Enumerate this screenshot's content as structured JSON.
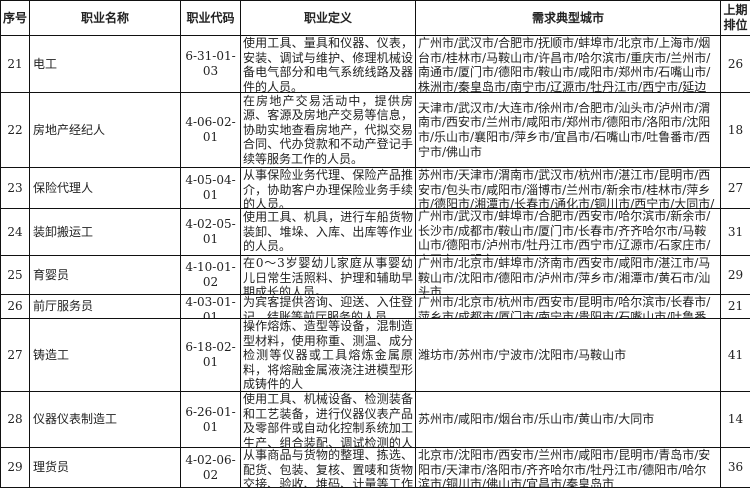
{
  "headers": [
    "序号",
    "职业名称",
    "职业代码",
    "职业定义",
    "需求典型城市",
    "上期排位"
  ],
  "rows": [
    {
      "no": "21",
      "name": "电工",
      "code": "6-31-01-03",
      "definition": "使用工具、量具和仪器、仪表，安装、调试与维护、修理机械设备电气部分和电气系统线路及器件的人员。",
      "cities": "广州市/武汉市/合肥市/抚顺市/蚌埠市/北京市/上海市/烟台市/桂林市/马鞍山市/许昌市/哈尔滨市/重庆市/兰州市/南通市/厦门市/德阳市/鞍山市/咸阳市/郑州市/石嘴山市/株洲市/秦皇岛市/南宁市/辽源市/牡丹江市/西宁市/延边朝鲜族自治州",
      "prev_rank": "26"
    },
    {
      "no": "22",
      "name": "房地产经纪人",
      "code": "4-06-02-01",
      "definition": "在房地产交易活动中，提供房源、客源及房地产交易等信息，协助实地查看房地产，代拟交易合同、代办贷款和不动产登记手续等服务工作的人员。",
      "cities": "天津市/武汉市/大连市/徐州市/合肥市/汕头市/泸州市/渭南市/西安市/兰州市/咸阳市/郑州市/德阳市/洛阳市/沈阳市/乐山市/襄阳市/萍乡市/宜昌市/石嘴山市/吐鲁番市/西宁市/佛山市",
      "prev_rank": "18"
    },
    {
      "no": "23",
      "name": "保险代理人",
      "code": "4-05-04-01",
      "definition": "从事保险业务代理、保险产品推介，协助客户办理保险业务手续的人员。",
      "cities": "苏州市/天津市/渭南市/武汉市/杭州市/湛江市/昆明市/西安市/包头市/咸阳市/淄博市/兰州市/新余市/桂林市/萍乡市/德阳市/湘潭市/长春市/通化市/铜川市/西宁市/大同市/辽源市/吉林市",
      "prev_rank": "27"
    },
    {
      "no": "24",
      "name": "装卸搬运工",
      "code": "4-02-05-01",
      "definition": "使用工具、机具，进行车船货物装卸、堆垛、入库、出库等作业的人员。",
      "cities": "广州市/武汉市/蚌埠市/合肥市/西安市/哈尔滨市/新余市/长沙市/成都市/鞍山市/厦门市/长春市/齐齐哈尔市/马鞍山市/德阳市/泸州市/牡丹江市/西宁市/辽源市/石家庄市/大同市/三明市",
      "prev_rank": "31"
    },
    {
      "no": "25",
      "name": "育婴员",
      "code": "4-10-01-02",
      "definition": "在0～3岁婴幼儿家庭从事婴幼儿日常生活照料、护理和辅助早期成长的人员。",
      "cities": "广州市/北京市/蚌埠市/济南市/西安市/咸阳市/湛江市/马鞍山市/沈阳市/德阳市/泸州市/萍乡市/湘潭市/黄石市/汕头市",
      "prev_rank": "29"
    },
    {
      "no": "26",
      "name": "前厅服务员",
      "code": "4-03-01-01",
      "definition": "为宾客提供咨询、迎送、入住登记、结账等前厅服务的人员。",
      "cities": "广州市/北京市/杭州市/西安市/昆明市/哈尔滨市/长春市/萍乡市/成都市/厦门市/南宁市/贵阳市/石嘴山市/吐鲁番市/大同市",
      "prev_rank": "21"
    },
    {
      "no": "27",
      "name": "铸造工",
      "code": "6-18-02-01",
      "definition": "操作熔炼、造型等设备，混制造型材料，使用称重、测温、成分检测等仪器或工具熔炼金属原料，将熔融金属液浇注进模型形成铸件的人",
      "cities": "潍坊市/苏州市/宁波市/沈阳市/马鞍山市",
      "prev_rank": "41"
    },
    {
      "no": "28",
      "name": "仪器仪表制造工",
      "code": "6-26-01-01",
      "definition": "使用工具、机械设备、检测装备和工艺装备，进行仪器仪表产品及零部件或自动化控制系统加工生产、组合装配、调试检测的人员。",
      "cities": "苏州市/咸阳市/烟台市/乐山市/黄山市/大同市",
      "prev_rank": "14"
    },
    {
      "no": "29",
      "name": "理货员",
      "code": "4-02-06-02",
      "definition": "从事商品与货物的整理、拣选、配货、包装、复核、置唛和货物交接、验收、堆码、计量等工作的人员",
      "cities": "北京市/沈阳市/西安市/兰州市/咸阳市/昆明市/青岛市/安阳市/天津市/洛阳市/齐齐哈尔市/牡丹江市/德阳市/哈尔滨市/铜川市/佛山市/宜昌市/秦皇岛市",
      "prev_rank": "36"
    }
  ]
}
